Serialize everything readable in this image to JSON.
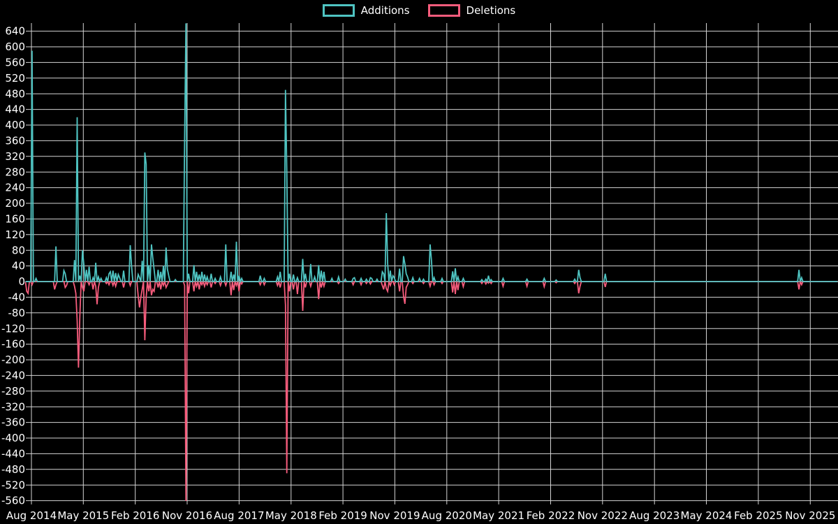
{
  "legend": {
    "items": [
      {
        "label": "Additions",
        "color": "#4fc4c2"
      },
      {
        "label": "Deletions",
        "color": "#f65c7c"
      }
    ]
  },
  "chart_data": {
    "type": "line",
    "title": "",
    "x_tick_labels": [
      "Aug 2014",
      "May 2015",
      "Feb 2016",
      "Nov 2016",
      "Aug 2017",
      "May 2018",
      "Feb 2019",
      "Nov 2019",
      "Aug 2020",
      "May 2021",
      "Feb 2022",
      "Nov 2022",
      "Aug 2023",
      "May 2024",
      "Feb 2025",
      "Nov 2025"
    ],
    "y_tick_max": 640,
    "y_tick_min": -560,
    "y_tick_step": 40,
    "baseline_value": 0,
    "x_unit": "week",
    "weeks_total": 613,
    "weeks_per_x_tick": 39.13,
    "first_x_tick_week": 4.5,
    "series_names": [
      "Additions",
      "Deletions"
    ],
    "series_colors": {
      "additions": "#4fc4c2",
      "deletions": "#f65c7c"
    },
    "grid_color": "#d4d4d4",
    "zero_line_color": "#8c8c8c",
    "background_color": "#000000",
    "note": "weeks not listed have additions 0 and deletions 0",
    "spikes_w_add_del": [
      [
        1,
        0,
        -25
      ],
      [
        2,
        0,
        -30
      ],
      [
        5,
        590,
        -8
      ],
      [
        8,
        8,
        0
      ],
      [
        22,
        0,
        -20
      ],
      [
        23,
        90,
        -8
      ],
      [
        29,
        28,
        0
      ],
      [
        30,
        20,
        -15
      ],
      [
        31,
        0,
        -10
      ],
      [
        37,
        55,
        -12
      ],
      [
        38,
        0,
        -30
      ],
      [
        39,
        420,
        -100
      ],
      [
        40,
        0,
        -220
      ],
      [
        41,
        15,
        -90
      ],
      [
        43,
        80,
        -15
      ],
      [
        44,
        45,
        -25
      ],
      [
        46,
        30,
        0
      ],
      [
        48,
        38,
        -8
      ],
      [
        51,
        10,
        -20
      ],
      [
        53,
        48,
        -12
      ],
      [
        54,
        0,
        -58
      ],
      [
        55,
        12,
        -15
      ],
      [
        57,
        8,
        0
      ],
      [
        61,
        10,
        -5
      ],
      [
        63,
        20,
        -8
      ],
      [
        64,
        25,
        0
      ],
      [
        66,
        28,
        -10
      ],
      [
        68,
        22,
        -12
      ],
      [
        70,
        18,
        0
      ],
      [
        71,
        10,
        0
      ],
      [
        74,
        28,
        -15
      ],
      [
        79,
        93,
        -10
      ],
      [
        80,
        40,
        0
      ],
      [
        85,
        18,
        -37
      ],
      [
        86,
        10,
        -66
      ],
      [
        87,
        0,
        -40
      ],
      [
        88,
        53,
        -20
      ],
      [
        90,
        330,
        -150
      ],
      [
        91,
        300,
        -40
      ],
      [
        93,
        42,
        -25
      ],
      [
        95,
        95,
        -35
      ],
      [
        96,
        60,
        -20
      ],
      [
        97,
        30,
        -25
      ],
      [
        100,
        30,
        -15
      ],
      [
        102,
        25,
        -20
      ],
      [
        104,
        40,
        -10
      ],
      [
        106,
        87,
        -15
      ],
      [
        107,
        32,
        -8
      ],
      [
        108,
        15,
        0
      ],
      [
        113,
        5,
        0
      ],
      [
        120,
        370,
        -10
      ],
      [
        121,
        660,
        -563
      ],
      [
        123,
        20,
        -30
      ],
      [
        127,
        42,
        -25
      ],
      [
        129,
        25,
        -12
      ],
      [
        131,
        18,
        -20
      ],
      [
        133,
        25,
        -8
      ],
      [
        135,
        18,
        -12
      ],
      [
        137,
        12,
        -8
      ],
      [
        140,
        20,
        -15
      ],
      [
        143,
        8,
        -5
      ],
      [
        147,
        12,
        -10
      ],
      [
        151,
        95,
        -10
      ],
      [
        155,
        25,
        -35
      ],
      [
        157,
        18,
        -22
      ],
      [
        159,
        102,
        -10
      ],
      [
        161,
        15,
        -25
      ],
      [
        163,
        8,
        -6
      ],
      [
        177,
        15,
        -8
      ],
      [
        180,
        8,
        -8
      ],
      [
        190,
        12,
        -10
      ],
      [
        192,
        25,
        -15
      ],
      [
        196,
        490,
        -60
      ],
      [
        197,
        280,
        -490
      ],
      [
        199,
        20,
        -25
      ],
      [
        202,
        18,
        -20
      ],
      [
        205,
        10,
        -32
      ],
      [
        209,
        58,
        -75
      ],
      [
        211,
        20,
        -15
      ],
      [
        215,
        45,
        -12
      ],
      [
        218,
        12,
        0
      ],
      [
        221,
        42,
        -45
      ],
      [
        223,
        28,
        -15
      ],
      [
        225,
        25,
        -12
      ],
      [
        231,
        8,
        0
      ],
      [
        236,
        12,
        -5
      ],
      [
        241,
        6,
        0
      ],
      [
        247,
        8,
        -8
      ],
      [
        248,
        10,
        0
      ],
      [
        253,
        8,
        -8
      ],
      [
        257,
        6,
        -5
      ],
      [
        260,
        10,
        -6
      ],
      [
        261,
        8,
        0
      ],
      [
        265,
        6,
        0
      ],
      [
        269,
        25,
        -10
      ],
      [
        270,
        20,
        -20
      ],
      [
        272,
        175,
        -18
      ],
      [
        273,
        46,
        -25
      ],
      [
        275,
        28,
        -10
      ],
      [
        277,
        15,
        0
      ],
      [
        278,
        10,
        -8
      ],
      [
        282,
        33,
        -25
      ],
      [
        285,
        65,
        -38
      ],
      [
        286,
        45,
        -57
      ],
      [
        287,
        20,
        -15
      ],
      [
        288,
        12,
        -8
      ],
      [
        292,
        10,
        -5
      ],
      [
        297,
        8,
        0
      ],
      [
        300,
        6,
        -5
      ],
      [
        305,
        95,
        -12
      ],
      [
        306,
        55,
        0
      ],
      [
        308,
        10,
        -8
      ],
      [
        314,
        8,
        -5
      ],
      [
        322,
        26,
        -28
      ],
      [
        324,
        34,
        -32
      ],
      [
        326,
        12,
        -22
      ],
      [
        330,
        8,
        -13
      ],
      [
        344,
        5,
        -5
      ],
      [
        347,
        6,
        -6
      ],
      [
        349,
        15,
        -4
      ],
      [
        351,
        5,
        -5
      ],
      [
        360,
        8,
        -12
      ],
      [
        378,
        6,
        -12
      ],
      [
        391,
        8,
        -13
      ],
      [
        400,
        4,
        -3
      ],
      [
        414,
        6,
        -5
      ],
      [
        417,
        30,
        -30
      ],
      [
        418,
        10,
        -12
      ],
      [
        437,
        20,
        -14
      ],
      [
        583,
        30,
        -20
      ],
      [
        585,
        10,
        -8
      ]
    ]
  }
}
